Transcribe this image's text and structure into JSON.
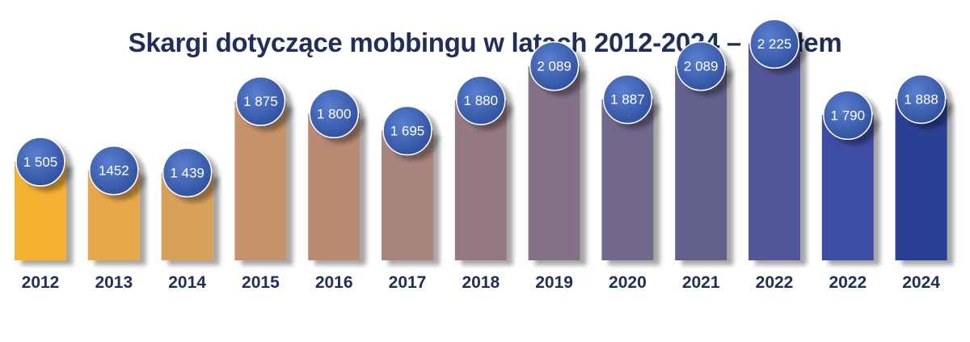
{
  "chart_data": {
    "type": "bar",
    "title": "Skargi dotyczące mobbingu w latach 2012-2024 – ogółem",
    "categories": [
      "2012",
      "2013",
      "2014",
      "2015",
      "2016",
      "2017",
      "2018",
      "2019",
      "2020",
      "2021",
      "2022",
      "2022",
      "2024"
    ],
    "values": [
      1505,
      1452,
      1439,
      1875,
      1800,
      1695,
      1880,
      2089,
      1887,
      2089,
      2225,
      1790,
      1888
    ],
    "value_labels": [
      "1 505",
      "1452",
      "1 439",
      "1 875",
      "1 800",
      "1 695",
      "1 880",
      "2 089",
      "1 887",
      "2 089",
      "2 225",
      "1 790",
      "1 888"
    ],
    "bar_colors": [
      "#f5b132",
      "#e8a84a",
      "#d9a05a",
      "#c7926a",
      "#b88a72",
      "#a9847c",
      "#957982",
      "#847188",
      "#71688b",
      "#63608e",
      "#51579a",
      "#3e4ea4",
      "#2b3f94"
    ],
    "bubble_color": "#3b5fb0",
    "label_color": "#1f2e5a",
    "xlabel": "",
    "ylabel": "",
    "grid": false,
    "legend": "none"
  }
}
